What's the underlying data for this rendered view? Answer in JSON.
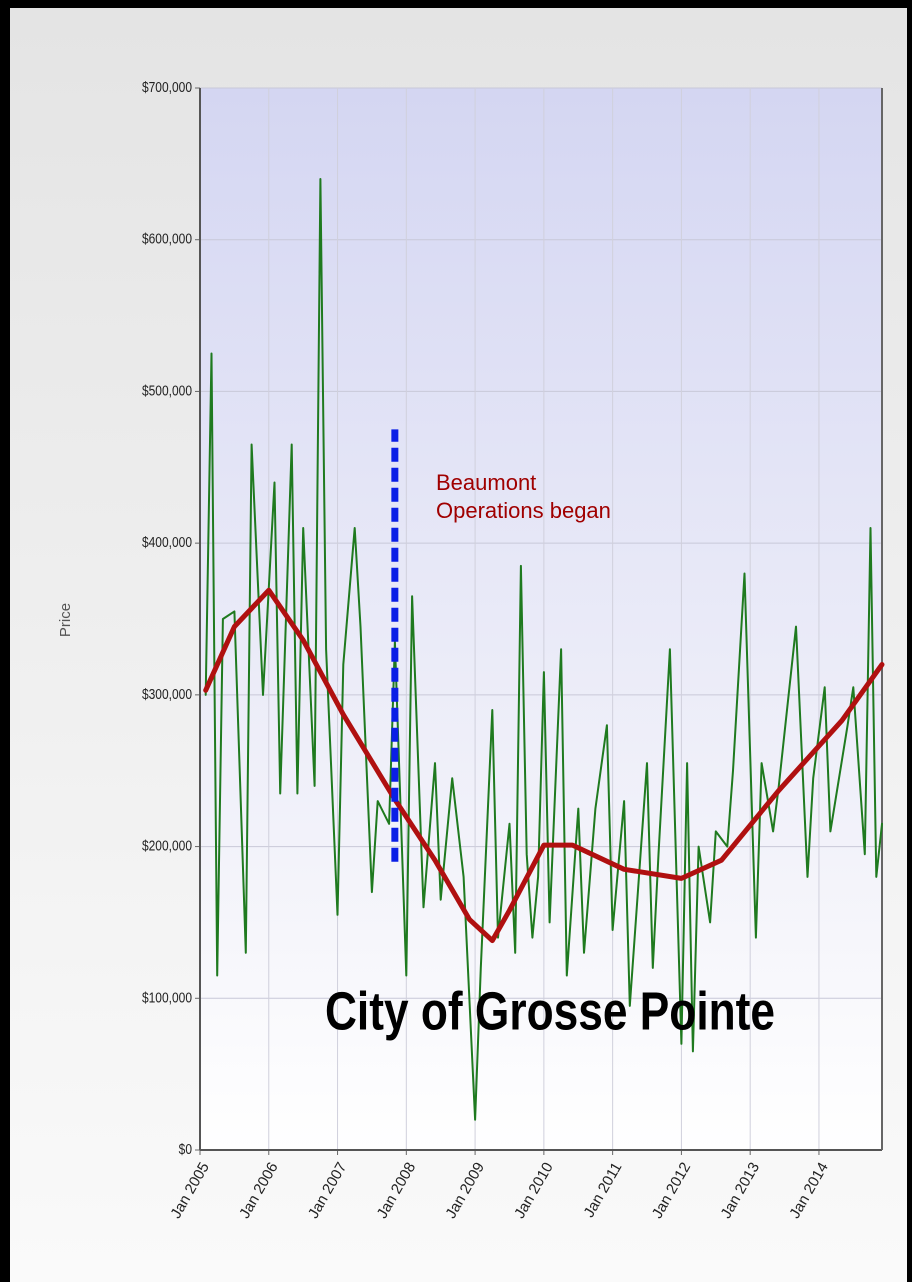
{
  "chart_data": {
    "type": "line",
    "title": "City of Grosse Pointe",
    "y_label": "Price",
    "xlim": [
      "2005-01",
      "2014-12"
    ],
    "ylim": [
      0,
      700000
    ],
    "yticks": [
      {
        "value": 0,
        "label": "$0"
      },
      {
        "value": 100000,
        "label": "$100,000"
      },
      {
        "value": 200000,
        "label": "$200,000"
      },
      {
        "value": 300000,
        "label": "$300,000"
      },
      {
        "value": 400000,
        "label": "$400,000"
      },
      {
        "value": 500000,
        "label": "$500,000"
      },
      {
        "value": 600000,
        "label": "$600,000"
      },
      {
        "value": 700000,
        "label": "$700,000"
      }
    ],
    "xticks": [
      {
        "value": "2005-01",
        "label": "Jan 2005"
      },
      {
        "value": "2006-01",
        "label": "Jan 2006"
      },
      {
        "value": "2007-01",
        "label": "Jan 2007"
      },
      {
        "value": "2008-01",
        "label": "Jan 2008"
      },
      {
        "value": "2009-01",
        "label": "Jan 2009"
      },
      {
        "value": "2010-01",
        "label": "Jan 2010"
      },
      {
        "value": "2011-01",
        "label": "Jan 2011"
      },
      {
        "value": "2012-01",
        "label": "Jan 2012"
      },
      {
        "value": "2013-01",
        "label": "Jan 2013"
      },
      {
        "value": "2014-01",
        "label": "Jan 2014"
      }
    ],
    "grid": true,
    "series": [
      {
        "color": "#1f7a1f",
        "width": 2,
        "x": [
          "2005-02",
          "2005-03",
          "2005-04",
          "2005-05",
          "2005-07",
          "2005-09",
          "2005-10",
          "2005-12",
          "2006-02",
          "2006-03",
          "2006-05",
          "2006-06",
          "2006-07",
          "2006-09",
          "2006-10",
          "2006-11",
          "2007-01",
          "2007-02",
          "2007-04",
          "2007-05",
          "2007-07",
          "2007-08",
          "2007-10",
          "2007-11",
          "2008-01",
          "2008-02",
          "2008-04",
          "2008-06",
          "2008-07",
          "2008-09",
          "2008-11",
          "2009-01",
          "2009-02",
          "2009-04",
          "2009-05",
          "2009-07",
          "2009-08",
          "2009-09",
          "2009-10",
          "2009-11",
          "2009-12",
          "2010-01",
          "2010-02",
          "2010-04",
          "2010-05",
          "2010-07",
          "2010-08",
          "2010-10",
          "2010-12",
          "2011-01",
          "2011-03",
          "2011-04",
          "2011-07",
          "2011-08",
          "2011-09",
          "2011-11",
          "2012-01",
          "2012-02",
          "2012-03",
          "2012-04",
          "2012-06",
          "2012-07",
          "2012-09",
          "2012-10",
          "2012-12",
          "2013-02",
          "2013-03",
          "2013-05",
          "2013-06",
          "2013-09",
          "2013-11",
          "2013-12",
          "2014-02",
          "2014-03",
          "2014-06",
          "2014-07",
          "2014-09",
          "2014-10",
          "2014-11",
          "2014-12"
        ],
        "values": [
          300000,
          525000,
          115000,
          350000,
          355000,
          130000,
          465000,
          300000,
          440000,
          235000,
          465000,
          235000,
          410000,
          240000,
          640000,
          330000,
          155000,
          320000,
          410000,
          345000,
          170000,
          230000,
          215000,
          335000,
          115000,
          365000,
          160000,
          255000,
          165000,
          245000,
          180000,
          20000,
          120000,
          290000,
          140000,
          215000,
          130000,
          385000,
          195000,
          140000,
          180000,
          315000,
          150000,
          330000,
          115000,
          225000,
          130000,
          225000,
          280000,
          145000,
          230000,
          95000,
          255000,
          120000,
          195000,
          330000,
          70000,
          255000,
          65000,
          200000,
          150000,
          210000,
          200000,
          250000,
          380000,
          140000,
          255000,
          210000,
          240000,
          345000,
          180000,
          245000,
          305000,
          210000,
          280000,
          305000,
          195000,
          410000,
          180000,
          215000
        ]
      },
      {
        "color": "#b01010",
        "width": 5,
        "x": [
          "2005-02",
          "2005-07",
          "2006-01",
          "2006-07",
          "2007-02",
          "2007-11",
          "2008-06",
          "2008-12",
          "2009-04",
          "2009-07",
          "2010-01",
          "2010-06",
          "2011-03",
          "2012-01",
          "2012-08",
          "2013-06",
          "2014-05",
          "2014-12"
        ],
        "values": [
          303000,
          345000,
          369000,
          336000,
          287000,
          231000,
          191000,
          152000,
          138000,
          158000,
          201000,
          201000,
          185000,
          179000,
          191000,
          237000,
          283000,
          320000
        ]
      }
    ],
    "marker_line": {
      "x": "2007-11",
      "y": [
        190000,
        475000
      ],
      "color": "#0a1ee6"
    },
    "annotation": {
      "lines": [
        "Beaumont",
        "Operations began"
      ],
      "color": "#a00000"
    }
  }
}
